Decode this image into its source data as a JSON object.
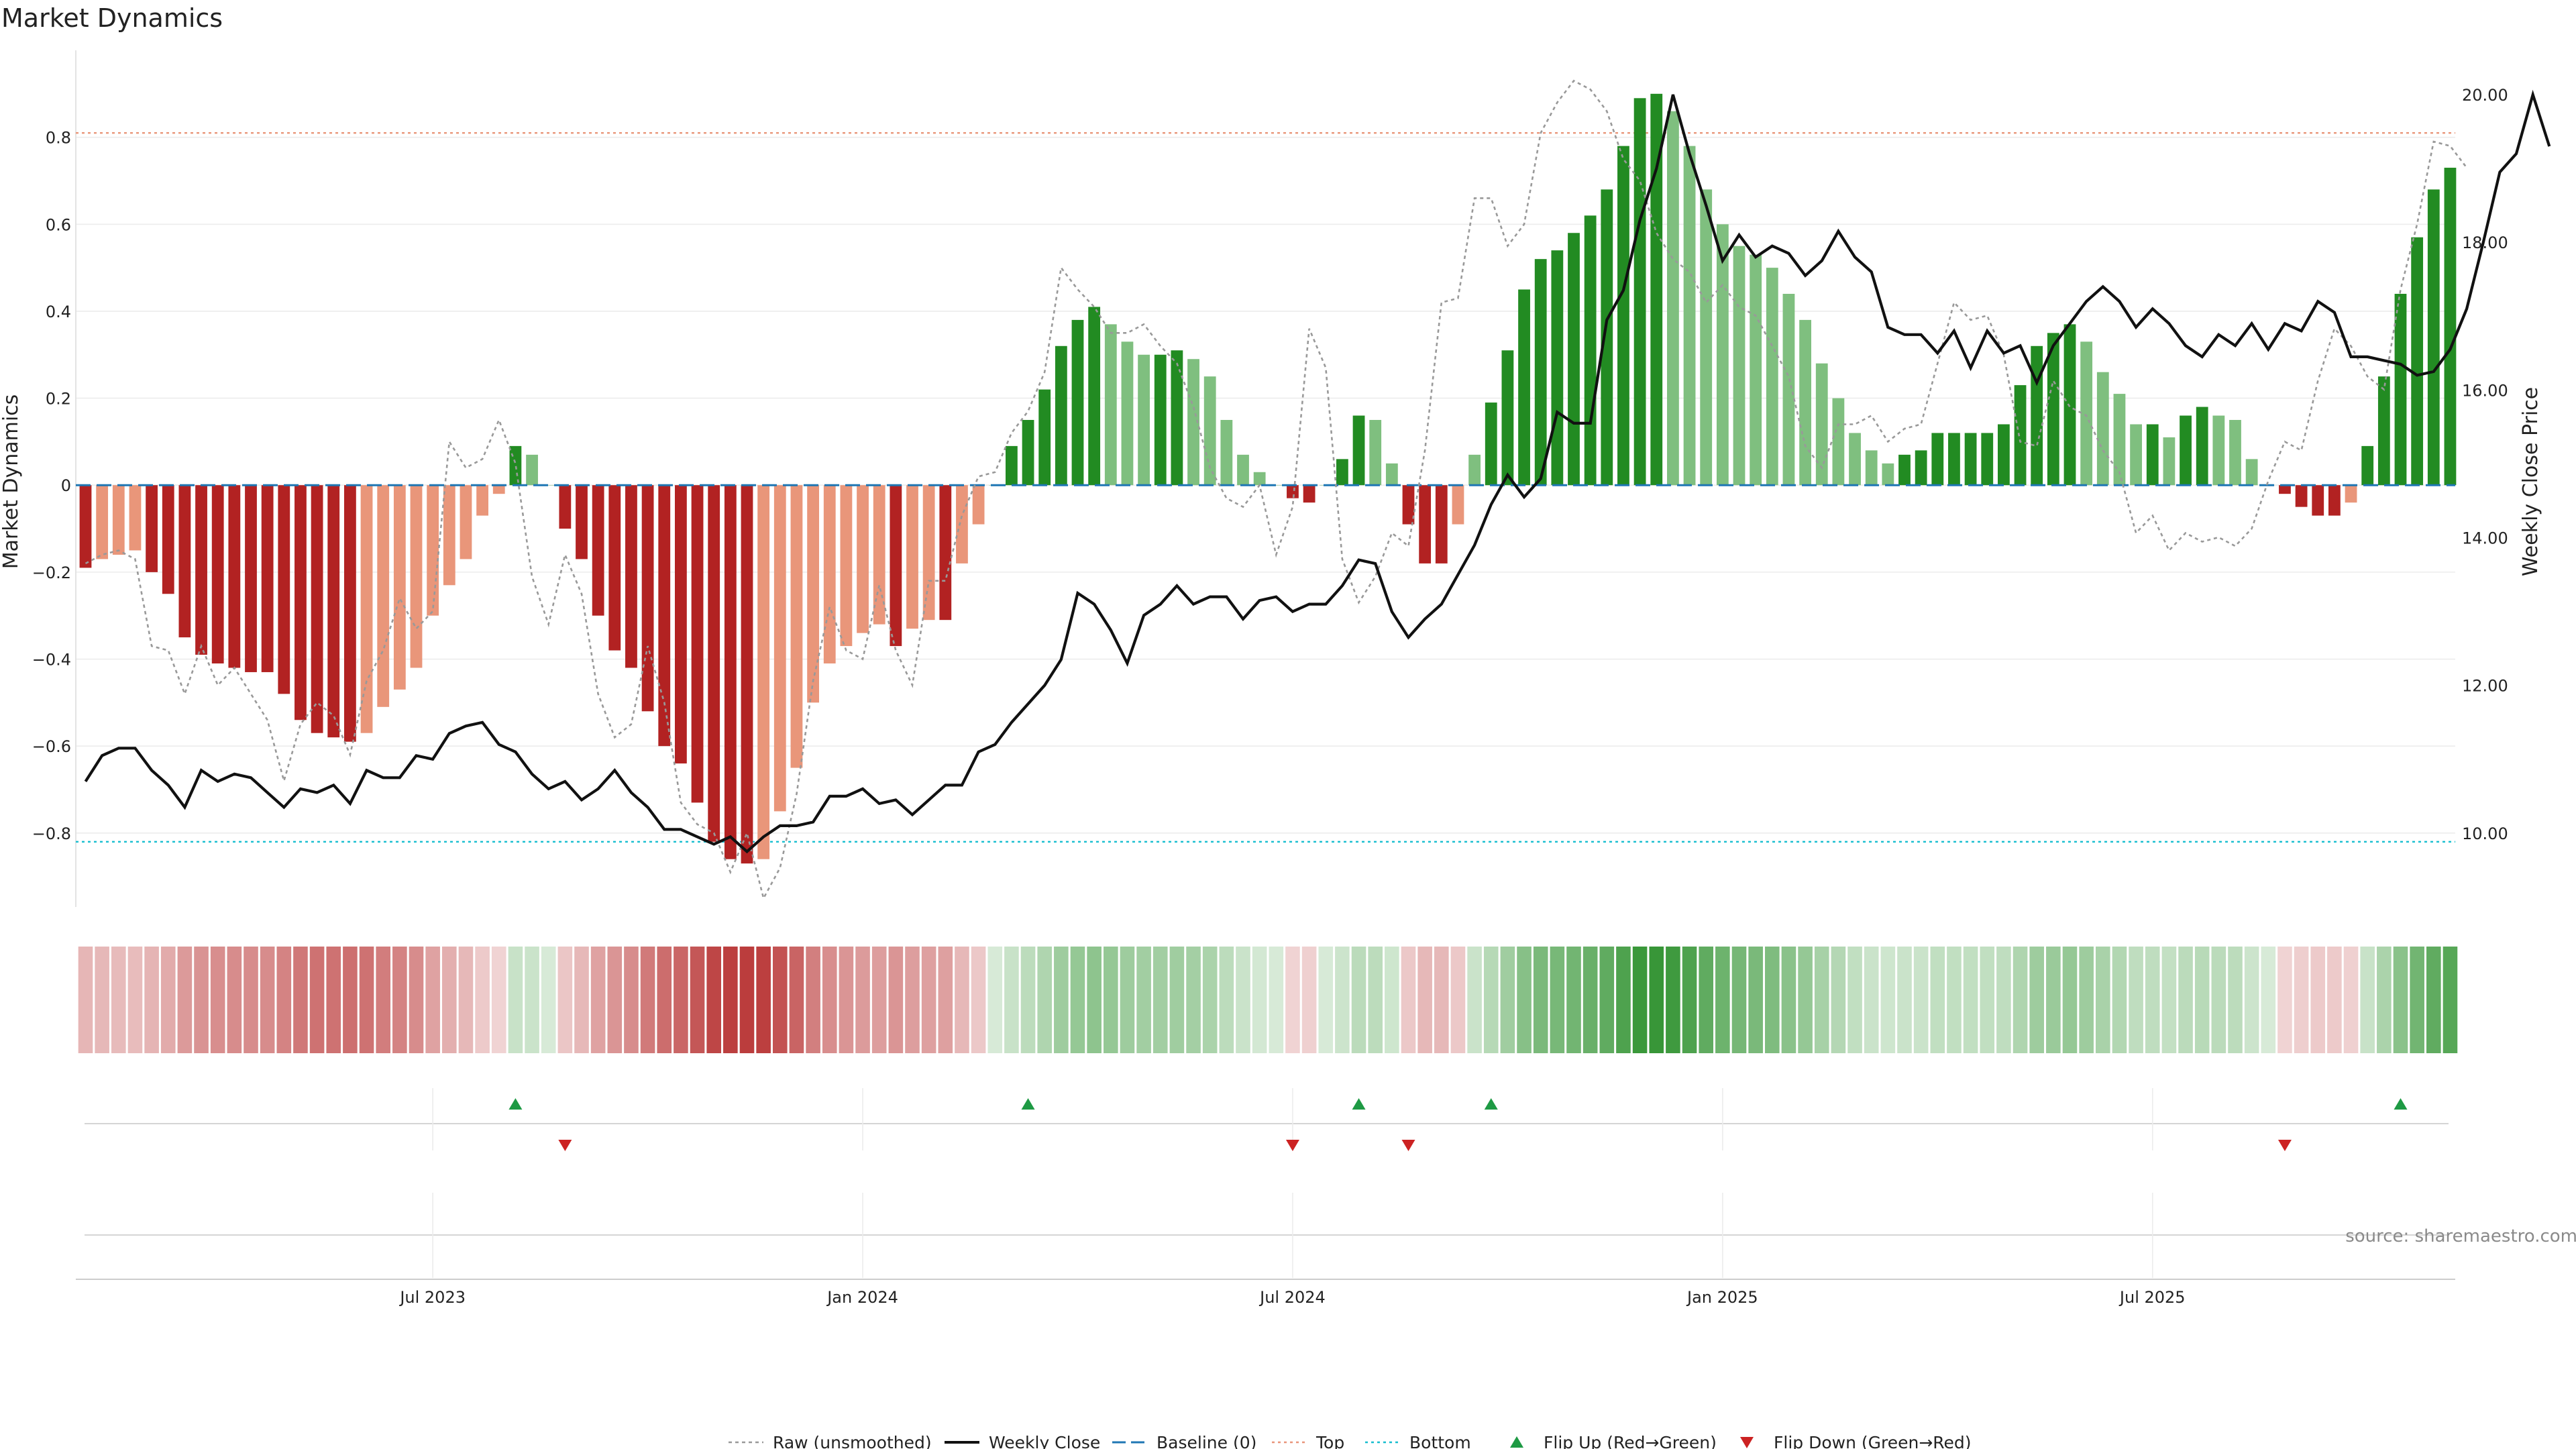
{
  "title": "Market Dynamics",
  "source_text": "source: sharemaestro.com",
  "colors": {
    "strong_red": "#b22222",
    "light_red": "#e9967a",
    "strong_green": "#228b22",
    "light_green": "#7fbf7f",
    "weekly_close": "#111111",
    "raw": "#999999",
    "baseline": "#1f77b4",
    "top": "#e9967a",
    "bottom": "#17becf",
    "flip_up": "#1e9a44",
    "flip_down": "#cc2222"
  },
  "chart_data": {
    "type": "bar",
    "left_axis_label": "Market Dynamics",
    "right_axis_label": "Weekly Close Price",
    "ylim": [
      -0.97,
      1.0
    ],
    "y2lim": [
      9.0,
      20.6
    ],
    "left_ticks": [
      "0.8",
      "0.6",
      "0.4",
      "0.2",
      "0",
      "−0.2",
      "−0.4",
      "−0.6",
      "−0.8"
    ],
    "left_tick_values": [
      0.8,
      0.6,
      0.4,
      0.2,
      0,
      -0.2,
      -0.4,
      -0.6,
      -0.8
    ],
    "right_ticks": [
      "20.00",
      "18.00",
      "16.00",
      "14.00",
      "12.00",
      "10.00"
    ],
    "right_tick_values": [
      20,
      18,
      16,
      14,
      12,
      10
    ],
    "x_ticks": [
      {
        "label": "Jul 2023",
        "index": 21
      },
      {
        "label": "Jan 2024",
        "index": 47
      },
      {
        "label": "Jul 2024",
        "index": 73
      },
      {
        "label": "Jan 2025",
        "index": 99
      },
      {
        "label": "Jul 2025",
        "index": 125
      }
    ],
    "top_level": 0.81,
    "bottom_level": -0.82,
    "baseline": 0,
    "bar_values": [
      -0.19,
      -0.17,
      -0.16,
      -0.15,
      -0.2,
      -0.25,
      -0.35,
      -0.39,
      -0.41,
      -0.42,
      -0.43,
      -0.43,
      -0.48,
      -0.54,
      -0.57,
      -0.58,
      -0.59,
      -0.57,
      -0.51,
      -0.47,
      -0.42,
      -0.3,
      -0.23,
      -0.17,
      -0.07,
      -0.02,
      0.09,
      0.07,
      0.0,
      -0.1,
      -0.17,
      -0.3,
      -0.38,
      -0.42,
      -0.52,
      -0.6,
      -0.64,
      -0.73,
      -0.82,
      -0.86,
      -0.87,
      -0.86,
      -0.75,
      -0.65,
      -0.5,
      -0.41,
      -0.37,
      -0.34,
      -0.32,
      -0.37,
      -0.33,
      -0.31,
      -0.31,
      -0.18,
      -0.09,
      0.0,
      0.09,
      0.15,
      0.22,
      0.32,
      0.38,
      0.41,
      0.37,
      0.33,
      0.3,
      0.3,
      0.31,
      0.29,
      0.25,
      0.15,
      0.07,
      0.03,
      0.0,
      -0.03,
      -0.04,
      0.0,
      0.06,
      0.16,
      0.15,
      0.05,
      -0.09,
      -0.18,
      -0.18,
      -0.09,
      0.07,
      0.19,
      0.31,
      0.45,
      0.52,
      0.54,
      0.58,
      0.62,
      0.68,
      0.78,
      0.89,
      0.9,
      0.86,
      0.78,
      0.68,
      0.6,
      0.55,
      0.53,
      0.5,
      0.44,
      0.38,
      0.28,
      0.2,
      0.12,
      0.08,
      0.05,
      0.07,
      0.08,
      0.12,
      0.12,
      0.12,
      0.12,
      0.14,
      0.23,
      0.32,
      0.35,
      0.37,
      0.33,
      0.26,
      0.21,
      0.14,
      0.14,
      0.11,
      0.16,
      0.18,
      0.16,
      0.15,
      0.06,
      0.0,
      -0.02,
      -0.05,
      -0.07,
      -0.07,
      -0.04,
      0.09,
      0.25,
      0.44,
      0.57,
      0.68,
      0.73
    ],
    "raw_values": [
      -0.18,
      -0.16,
      -0.15,
      -0.17,
      -0.37,
      -0.38,
      -0.48,
      -0.37,
      -0.46,
      -0.42,
      -0.48,
      -0.54,
      -0.68,
      -0.55,
      -0.5,
      -0.53,
      -0.62,
      -0.45,
      -0.38,
      -0.26,
      -0.33,
      -0.29,
      0.1,
      0.04,
      0.06,
      0.15,
      0.05,
      -0.21,
      -0.32,
      -0.16,
      -0.25,
      -0.48,
      -0.58,
      -0.55,
      -0.37,
      -0.5,
      -0.73,
      -0.78,
      -0.8,
      -0.89,
      -0.8,
      -0.95,
      -0.88,
      -0.71,
      -0.45,
      -0.28,
      -0.38,
      -0.4,
      -0.23,
      -0.38,
      -0.46,
      -0.22,
      -0.22,
      -0.07,
      0.02,
      0.03,
      0.12,
      0.17,
      0.26,
      0.5,
      0.45,
      0.41,
      0.35,
      0.35,
      0.37,
      0.32,
      0.28,
      0.18,
      0.04,
      -0.03,
      -0.05,
      0.0,
      -0.16,
      -0.05,
      0.36,
      0.27,
      -0.17,
      -0.27,
      -0.21,
      -0.11,
      -0.14,
      0.08,
      0.42,
      0.43,
      0.66,
      0.66,
      0.55,
      0.6,
      0.81,
      0.88,
      0.93,
      0.91,
      0.86,
      0.75,
      0.7,
      0.58,
      0.52,
      0.49,
      0.42,
      0.46,
      0.41,
      0.39,
      0.32,
      0.25,
      0.09,
      0.04,
      0.14,
      0.14,
      0.16,
      0.1,
      0.13,
      0.14,
      0.28,
      0.42,
      0.38,
      0.39,
      0.3,
      0.1,
      0.09,
      0.24,
      0.18,
      0.16,
      0.08,
      0.03,
      -0.11,
      -0.07,
      -0.15,
      -0.11,
      -0.13,
      -0.12,
      -0.14,
      -0.1,
      0.01,
      0.1,
      0.08,
      0.24,
      0.36,
      0.32,
      0.25,
      0.22,
      0.45,
      0.6,
      0.79,
      0.78,
      0.73
    ],
    "close_values": [
      10.7,
      11.05,
      11.15,
      11.15,
      10.85,
      10.65,
      10.35,
      10.85,
      10.7,
      10.8,
      10.75,
      10.55,
      10.35,
      10.6,
      10.55,
      10.65,
      10.4,
      10.85,
      10.75,
      10.75,
      11.05,
      11.0,
      11.35,
      11.45,
      11.5,
      11.2,
      11.1,
      10.8,
      10.6,
      10.7,
      10.45,
      10.6,
      10.85,
      10.55,
      10.35,
      10.05,
      10.05,
      9.95,
      9.85,
      9.95,
      9.75,
      9.95,
      10.1,
      10.1,
      10.15,
      10.5,
      10.5,
      10.6,
      10.4,
      10.45,
      10.25,
      10.45,
      10.65,
      10.65,
      11.1,
      11.2,
      11.5,
      11.75,
      12.0,
      12.35,
      13.25,
      13.1,
      12.75,
      12.3,
      12.95,
      13.1,
      13.35,
      13.1,
      13.2,
      13.2,
      12.9,
      13.15,
      13.2,
      13.0,
      13.1,
      13.1,
      13.35,
      13.7,
      13.65,
      13.0,
      12.65,
      12.9,
      13.1,
      13.5,
      13.9,
      14.45,
      14.85,
      14.55,
      14.8,
      15.7,
      15.55,
      15.55,
      16.95,
      17.35,
      18.3,
      19.0,
      20.0,
      19.2,
      18.5,
      17.75,
      18.1,
      17.8,
      17.95,
      17.85,
      17.55,
      17.75,
      18.15,
      17.8,
      17.6,
      16.85,
      16.75,
      16.75,
      16.5,
      16.8,
      16.3,
      16.8,
      16.5,
      16.6,
      16.1,
      16.6,
      16.9,
      17.2,
      17.4,
      17.2,
      16.85,
      17.1,
      16.9,
      16.6,
      16.45,
      16.75,
      16.6,
      16.9,
      16.55,
      16.9,
      16.8,
      17.2,
      17.05,
      16.45,
      16.45,
      16.4,
      16.35,
      16.2,
      16.25,
      16.55,
      17.1,
      18.0,
      18.95,
      19.2,
      20.0,
      19.3
    ],
    "flip_up_indices": [
      26,
      57,
      77,
      85,
      140
    ],
    "flip_down_indices": [
      29,
      73,
      80,
      133
    ]
  },
  "legend": [
    {
      "label": "Raw (unsmoothed)",
      "style": "dotted-gray"
    },
    {
      "label": "Weekly Close",
      "style": "solid-black"
    },
    {
      "label": "Baseline (0)",
      "style": "dashed-blue"
    },
    {
      "label": "Top",
      "style": "dotted-salmon"
    },
    {
      "label": "Bottom",
      "style": "dotted-cyan"
    },
    {
      "label": "Flip Up (Red→Green)",
      "style": "triangle-up-green"
    },
    {
      "label": "Flip Down (Green→Red)",
      "style": "triangle-down-red"
    }
  ]
}
